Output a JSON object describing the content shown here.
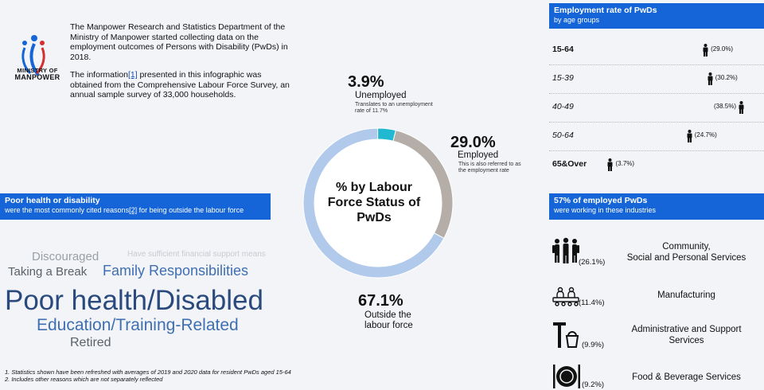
{
  "organization": {
    "logo_line1": "MINISTRY  OF",
    "logo_line2": "MANPOWER"
  },
  "intro": {
    "paragraph1": "The Manpower Research and Statistics Department of the Ministry of Manpower started collecting data on the employment outcomes of Persons with Disability (PwDs) in 2018.",
    "paragraph2_before": "The information",
    "paragraph2_ref": "[1]",
    "paragraph2_after": " presented in this infographic was obtained from the Comprehensive Labour Force Survey, an annual sample survey of 33,000 households."
  },
  "chart_data": [
    {
      "type": "pie",
      "title": "% by Labour Force Status of PwDs",
      "slices": [
        {
          "label": "Unemployed",
          "value": 3.9,
          "display": "3.9%",
          "note": "Translates to an unemployment rate of 11.7%",
          "color": "#20b9d1"
        },
        {
          "label": "Employed",
          "value": 29.0,
          "display": "29.0%",
          "note": "This is also referred to as the employment rate",
          "color": "#b5aea8"
        },
        {
          "label": "Outside the labour force",
          "value": 67.1,
          "display": "67.1%",
          "note": "",
          "color": "#b1c9ea"
        }
      ]
    },
    {
      "type": "bar",
      "title": "Employment rate of PwDs",
      "subtitle": "by age groups",
      "categories": [
        "15-64",
        "15-39",
        "40-49",
        "50-64",
        "65&Over"
      ],
      "values": [
        29.0,
        30.2,
        38.5,
        24.7,
        3.7
      ],
      "value_labels": [
        "(29.0%)",
        "(30.2%)",
        "(38.5%)",
        "(24.7%)",
        "(3.7%)"
      ],
      "xlim": [
        0,
        38.5
      ]
    },
    {
      "type": "table",
      "title": "57% of employed PwDs",
      "subtitle": "were working in these industries",
      "rows": [
        {
          "pct": "(26.1%)",
          "name_line1": "Community,",
          "name_line2": "Social and Personal Services",
          "icon": "people-icon"
        },
        {
          "pct": "(11.4%)",
          "name_line1": "Manufacturing",
          "name_line2": "",
          "icon": "factory-workers-icon"
        },
        {
          "pct": "(9.9%)",
          "name_line1": "Administrative and Support",
          "name_line2": "Services",
          "icon": "cleaning-bucket-icon"
        },
        {
          "pct": "(9.2%)",
          "name_line1": "Food & Beverage Services",
          "name_line2": "",
          "icon": "plate-cutlery-icon"
        }
      ]
    }
  ],
  "reasons": {
    "title": "Poor health or disability",
    "subtitle_before": "were the most commonly cited reasons",
    "subtitle_ref": "[2]",
    "subtitle_after": " for being outside the labour force",
    "words": [
      {
        "text": "Discouraged",
        "color": "#9aa0a6"
      },
      {
        "text": "Have sufficient financial support means",
        "color": "#c8cbd0"
      },
      {
        "text": "Taking a Break",
        "color": "#5b6268"
      },
      {
        "text": "Family Responsibilities",
        "color": "#3f6fb3"
      },
      {
        "text": "Poor health/Disabled",
        "color": "#2a4a7e"
      },
      {
        "text": "Education/Training-Related",
        "color": "#3f6fb3"
      },
      {
        "text": "Retired",
        "color": "#5b6268"
      }
    ]
  },
  "footnotes": {
    "note1": "1. Statistics shown have been refreshed with averages of 2019 and 2020 data for resident PwDs aged 15-64",
    "note2": "2. Includes other reasons which are not separately reflected"
  },
  "colors": {
    "accent": "#1565d8"
  }
}
